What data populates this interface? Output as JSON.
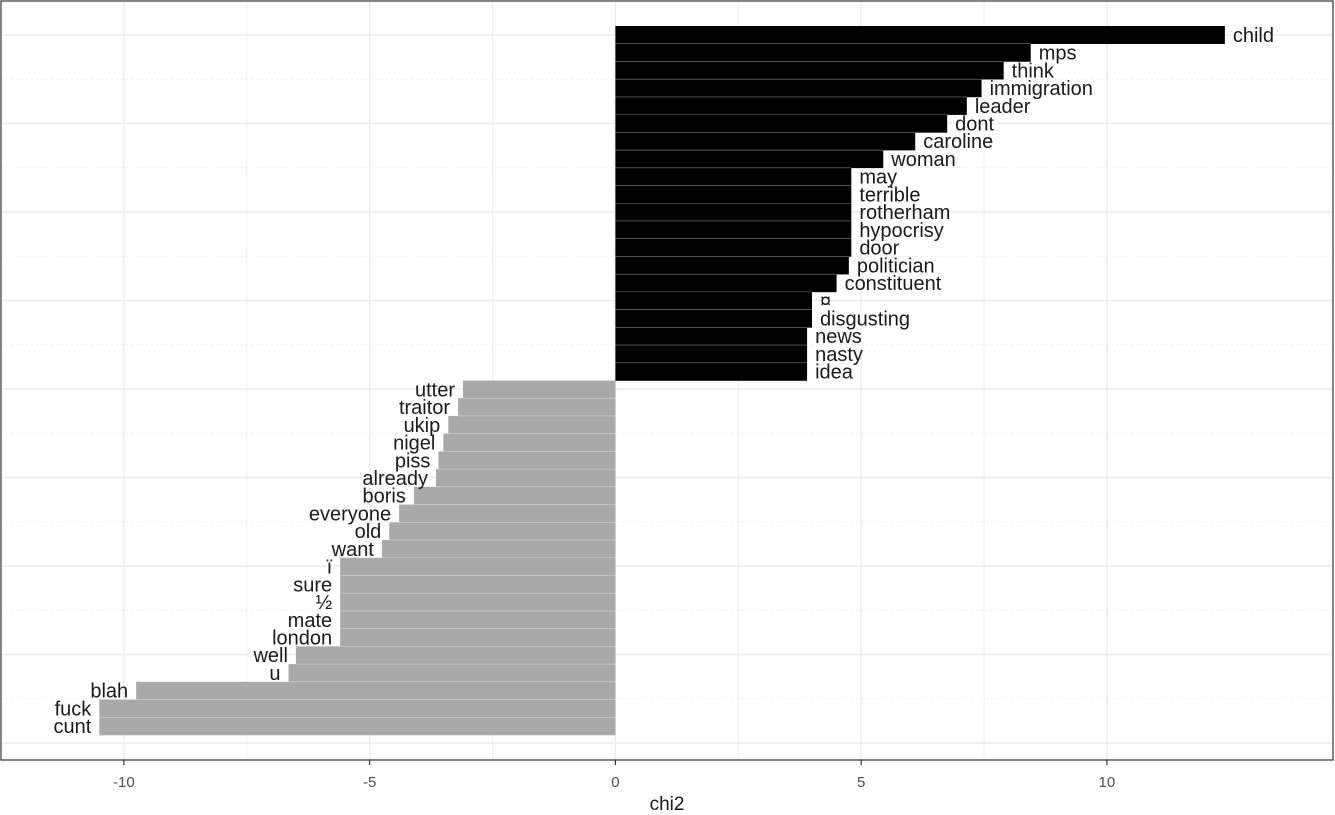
{
  "chart_data": {
    "type": "bar",
    "orientation": "horizontal",
    "xlabel": "chi2",
    "ylabel": "",
    "xlim": [
      -12.5,
      14.6
    ],
    "xticks": [
      -10,
      -5,
      0,
      5,
      10
    ],
    "xtick_labels": [
      "-10",
      "-5",
      "0",
      "5",
      "10"
    ],
    "grid": true,
    "legend": "none",
    "colors": {
      "positive": "#000000",
      "negative": "#a9a9a9",
      "grid": "#ebebeb",
      "panel_border": "#333333"
    },
    "bars": [
      {
        "label": "child",
        "value": 12.4
      },
      {
        "label": "mps",
        "value": 8.45
      },
      {
        "label": "think",
        "value": 7.9
      },
      {
        "label": "immigration",
        "value": 7.45
      },
      {
        "label": "leader",
        "value": 7.15
      },
      {
        "label": "dont",
        "value": 6.75
      },
      {
        "label": "caroline",
        "value": 6.1
      },
      {
        "label": "woman",
        "value": 5.45
      },
      {
        "label": "may",
        "value": 4.8
      },
      {
        "label": "terrible",
        "value": 4.8
      },
      {
        "label": "rotherham",
        "value": 4.8
      },
      {
        "label": "hypocrisy",
        "value": 4.8
      },
      {
        "label": "door",
        "value": 4.8
      },
      {
        "label": "politician",
        "value": 4.75
      },
      {
        "label": "constituent",
        "value": 4.5
      },
      {
        "label": "¤",
        "value": 4.0
      },
      {
        "label": "disgusting",
        "value": 4.0
      },
      {
        "label": "news",
        "value": 3.9
      },
      {
        "label": "nasty",
        "value": 3.9
      },
      {
        "label": "idea",
        "value": 3.9
      },
      {
        "label": "utter",
        "value": -3.1
      },
      {
        "label": "traitor",
        "value": -3.2
      },
      {
        "label": "ukip",
        "value": -3.4
      },
      {
        "label": "nigel",
        "value": -3.5
      },
      {
        "label": "piss",
        "value": -3.6
      },
      {
        "label": "already",
        "value": -3.65
      },
      {
        "label": "boris",
        "value": -4.1
      },
      {
        "label": "everyone",
        "value": -4.4
      },
      {
        "label": "old",
        "value": -4.6
      },
      {
        "label": "want",
        "value": -4.75
      },
      {
        "label": "ï",
        "value": -5.6
      },
      {
        "label": "sure",
        "value": -5.6
      },
      {
        "label": "½",
        "value": -5.6
      },
      {
        "label": "mate",
        "value": -5.6
      },
      {
        "label": "london",
        "value": -5.6
      },
      {
        "label": "well",
        "value": -6.5
      },
      {
        "label": "u",
        "value": -6.65
      },
      {
        "label": "blah",
        "value": -9.75
      },
      {
        "label": "fuck",
        "value": -10.5
      },
      {
        "label": "cunt",
        "value": -10.5
      }
    ]
  }
}
